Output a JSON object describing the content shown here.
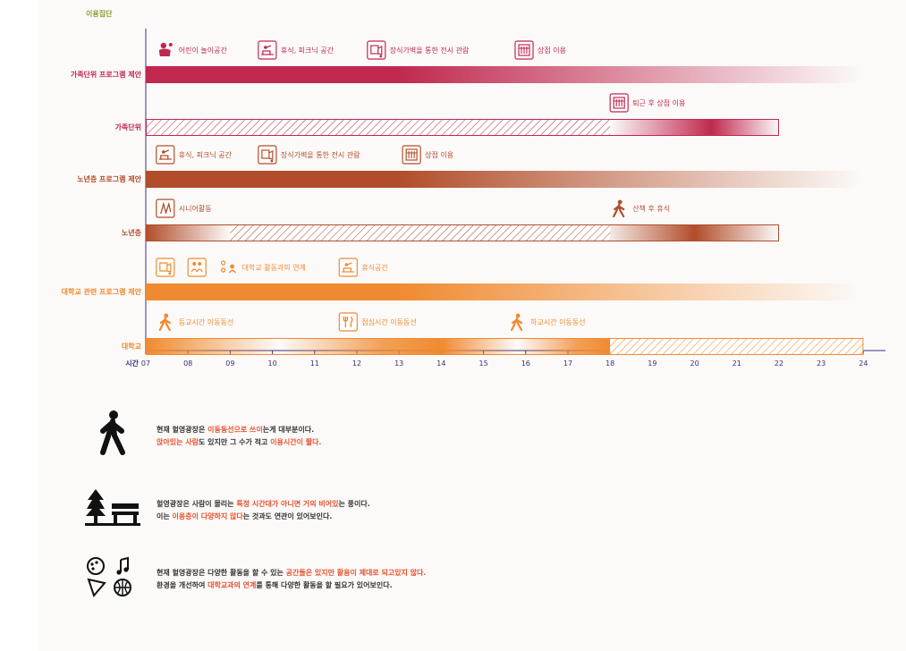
{
  "header_label": "이용집단",
  "time_axis": {
    "label": "시간",
    "ticks": [
      "07",
      "08",
      "09",
      "10",
      "11",
      "12",
      "13",
      "14",
      "15",
      "16",
      "17",
      "18",
      "19",
      "20",
      "21",
      "22",
      "23",
      "24"
    ]
  },
  "colors": {
    "family": "#c0284f",
    "senior": "#b14d2a",
    "university": "#f08a30",
    "legend_highlight": "#e8512f",
    "axis": "#3a2f7a",
    "header": "#8a9a2e"
  },
  "rows": [
    {
      "group": "family",
      "label": "가족단위 프로그램 제안",
      "kind": "proposal",
      "bar": {
        "start": "07:00",
        "end": "24:00",
        "fill": "gradient-fade-right"
      },
      "annotations": [
        {
          "icon": "children-play-icon",
          "text": "어린이 놀이공간",
          "at": "07:15"
        },
        {
          "icon": "picnic-rest-icon",
          "text": "휴식, 피크닉 공간",
          "at": "09:40"
        },
        {
          "icon": "exhibition-icon",
          "text": "장식가벽을 통한 전시 관람",
          "at": "12:15"
        },
        {
          "icon": "shopping-icon",
          "text": "상점 이용",
          "at": "15:45"
        }
      ]
    },
    {
      "group": "family",
      "label": "가족단위",
      "kind": "current",
      "bar": {
        "start": "07:00",
        "end": "22:00"
      },
      "segments": [
        {
          "start": "07:00",
          "end": "18:00",
          "fill": "hatched"
        },
        {
          "start": "18:00",
          "end": "22:00",
          "fill": "gradient-peak"
        }
      ],
      "annotations": [
        {
          "icon": "shopping-icon",
          "text": "퇴근 후 상점 이용",
          "at": "18:00"
        }
      ]
    },
    {
      "group": "senior",
      "label": "노년층 프로그램 제안",
      "kind": "proposal",
      "bar": {
        "start": "07:00",
        "end": "24:00",
        "fill": "gradient-fade-right"
      },
      "annotations": [
        {
          "icon": "picnic-rest-icon",
          "text": "휴식, 피크닉 공간",
          "at": "07:15"
        },
        {
          "icon": "exhibition-icon",
          "text": "장식가벽을 통한 전시 관람",
          "at": "09:40"
        },
        {
          "icon": "shopping-icon",
          "text": "상점 이용",
          "at": "13:05"
        }
      ]
    },
    {
      "group": "senior",
      "label": "노년층",
      "kind": "current",
      "bar": {
        "start": "07:00",
        "end": "22:00"
      },
      "segments": [
        {
          "start": "07:00",
          "end": "09:00",
          "fill": "gradient-fade-right"
        },
        {
          "start": "09:00",
          "end": "18:00",
          "fill": "hatched"
        },
        {
          "start": "18:00",
          "end": "22:00",
          "fill": "gradient-peak"
        }
      ],
      "annotations": [
        {
          "icon": "senior-activity-icon",
          "text": "시니어활동",
          "at": "07:15"
        },
        {
          "icon": "walking-person-icon",
          "text": "산책 후 휴식",
          "at": "18:00"
        }
      ]
    },
    {
      "group": "university",
      "label": "대학교 관련 프로그램 제안",
      "kind": "proposal",
      "bar": {
        "start": "07:00",
        "end": "24:00",
        "fill": "gradient-fade-right"
      },
      "annotations": [
        {
          "icon": "exhibition-icon",
          "text": "",
          "at": "07:15"
        },
        {
          "icon": "people-icon",
          "text": "",
          "at": "08:00"
        },
        {
          "icon": "university-link-icon",
          "text": "대학교 활동과의 연계",
          "at": "08:45"
        },
        {
          "icon": "picnic-rest-icon",
          "text": "휴식공간",
          "at": "11:35"
        }
      ]
    },
    {
      "group": "university",
      "label": "대학교",
      "kind": "current",
      "bar": {
        "start": "07:00",
        "end": "24:00"
      },
      "segments": [
        {
          "start": "07:00",
          "end": "14:00",
          "fill": "gradient-dip"
        },
        {
          "start": "14:00",
          "end": "18:00",
          "fill": "gradient-dip"
        },
        {
          "start": "18:00",
          "end": "24:00",
          "fill": "hatched"
        }
      ],
      "annotations": [
        {
          "icon": "walking-person-icon",
          "text": "등교시간 이동동선",
          "at": "07:15"
        },
        {
          "icon": "dining-icon",
          "text": "점심시간 이동동선",
          "at": "11:35"
        },
        {
          "icon": "walking-person-icon",
          "text": "하교시간 이동동선",
          "at": "15:35"
        }
      ]
    }
  ],
  "legend": [
    {
      "icon": "walking-person-icon",
      "lines": [
        [
          {
            "t": "현재 헐영광장은 ",
            "hl": false
          },
          {
            "t": "이동동선으로 쓰이",
            "hl": true
          },
          {
            "t": "는게 대부분이다.",
            "hl": false
          }
        ],
        [
          {
            "t": "앉아있는 사람",
            "hl": true
          },
          {
            "t": "도 있지만 그 수가 적고 ",
            "hl": false
          },
          {
            "t": "이용시간이 짧다.",
            "hl": true
          }
        ]
      ]
    },
    {
      "icon": "tree-bench-icon",
      "lines": [
        [
          {
            "t": "헐영광장은 사람이 몰리는 ",
            "hl": false
          },
          {
            "t": "특정 시간대가 아니면 거의 비어있",
            "hl": true
          },
          {
            "t": "는 풍이다.",
            "hl": false
          }
        ],
        [
          {
            "t": "이는 ",
            "hl": false
          },
          {
            "t": "이용층이 다양하지 않다",
            "hl": true
          },
          {
            "t": "는 것과도 연관이 있어보인다.",
            "hl": false
          }
        ]
      ]
    },
    {
      "icon": "activities-icon",
      "lines": [
        [
          {
            "t": "현재 헐영광장은 다양한 활동을 할 수 있는 ",
            "hl": false
          },
          {
            "t": "공간들은 있지만 활용이 제대로 되고있지 않다.",
            "hl": true
          }
        ],
        [
          {
            "t": "환경을 개선하여 ",
            "hl": false
          },
          {
            "t": "대학교과의 연계",
            "hl": true
          },
          {
            "t": "를 통해 다양한 활동을 할 필요가 있어보인다.",
            "hl": false
          }
        ]
      ]
    }
  ]
}
